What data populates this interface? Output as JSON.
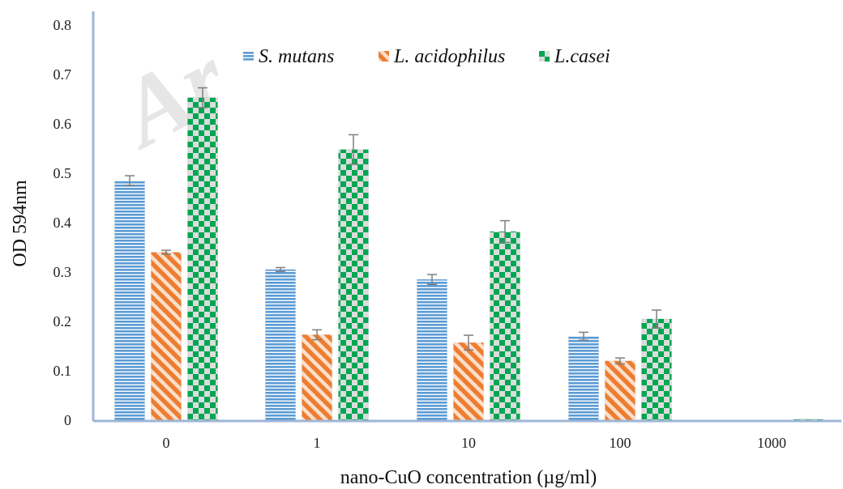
{
  "watermark": "Ar",
  "chart_data": {
    "type": "bar",
    "xlabel": "nano-CuO concentration (µg/ml)",
    "ylabel": "OD 594nm",
    "ylim": [
      0,
      0.8
    ],
    "yticks": [
      "0",
      "0.1",
      "0.2",
      "0.3",
      "0.4",
      "0.5",
      "0.6",
      "0.7",
      "0.8"
    ],
    "categories": [
      "0",
      "1",
      "10",
      "100",
      "1000"
    ],
    "legend_position": "top",
    "grid": false,
    "series": [
      {
        "name": "S. mutans",
        "pattern": "horizontal-stripes",
        "color": "#5b9bd5",
        "values": [
          0.485,
          0.305,
          0.285,
          0.17,
          0.0
        ],
        "errors": [
          0.01,
          0.004,
          0.01,
          0.008,
          0.0
        ]
      },
      {
        "name": "L. acidophilus",
        "pattern": "diagonal-stripes",
        "color": "#ed7d31",
        "values": [
          0.34,
          0.173,
          0.157,
          0.12,
          0.0
        ],
        "errors": [
          0.004,
          0.01,
          0.015,
          0.006,
          0.0
        ]
      },
      {
        "name": "L.casei",
        "pattern": "checkerboard",
        "color": "#00a651",
        "values": [
          0.653,
          0.548,
          0.382,
          0.205,
          0.002
        ],
        "errors": [
          0.02,
          0.03,
          0.022,
          0.018,
          0.0
        ]
      }
    ]
  }
}
